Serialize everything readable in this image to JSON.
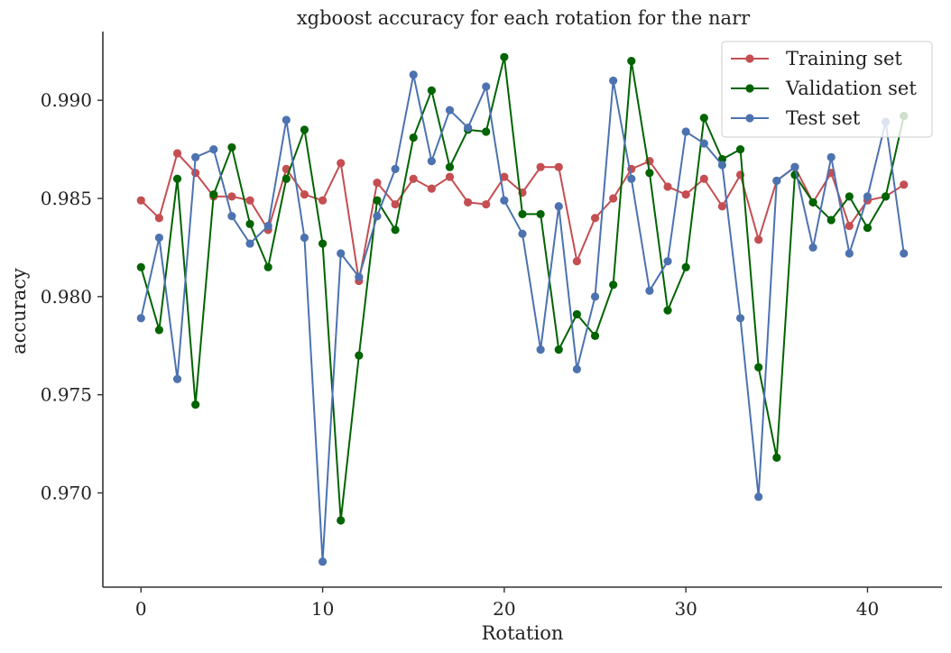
{
  "chart_data": {
    "type": "line",
    "title": "xgboost accuracy for each rotation for the narr",
    "xlabel": "Rotation",
    "ylabel": "accuracy",
    "xlim": [
      -2.1,
      44.1
    ],
    "ylim": [
      0.9652,
      0.9935
    ],
    "xticks": [
      0,
      10,
      20,
      30,
      40
    ],
    "xtick_labels": [
      "0",
      "10",
      "20",
      "30",
      "40"
    ],
    "yticks": [
      0.97,
      0.975,
      0.98,
      0.985,
      0.99
    ],
    "ytick_labels": [
      "0.970",
      "0.975",
      "0.980",
      "0.985",
      "0.990"
    ],
    "grid": false,
    "legend_position": "top-right",
    "x": [
      0,
      1,
      2,
      3,
      4,
      5,
      6,
      7,
      8,
      9,
      10,
      11,
      12,
      13,
      14,
      15,
      16,
      17,
      18,
      19,
      20,
      21,
      22,
      23,
      24,
      25,
      26,
      27,
      28,
      29,
      30,
      31,
      32,
      33,
      34,
      35,
      36,
      37,
      38,
      39,
      40,
      41,
      42
    ],
    "series": [
      {
        "name": "Training set",
        "color": "#c44e52",
        "values": [
          0.9849,
          0.984,
          0.9873,
          0.9863,
          0.9851,
          0.9851,
          0.9849,
          0.9834,
          0.9865,
          0.9852,
          0.9849,
          0.9868,
          0.9808,
          0.9858,
          0.9847,
          0.986,
          0.9855,
          0.9861,
          0.9848,
          0.9847,
          0.9861,
          0.9853,
          0.9866,
          0.9866,
          0.9818,
          0.984,
          0.985,
          0.9865,
          0.9869,
          0.9856,
          0.9852,
          0.986,
          0.9846,
          0.9862,
          0.9829,
          0.9859,
          0.9866,
          0.9848,
          0.9863,
          0.9836,
          0.9849,
          0.9851,
          0.9857
        ]
      },
      {
        "name": "Validation set",
        "color": "#006400",
        "values": [
          0.9815,
          0.9783,
          0.986,
          0.9745,
          0.9852,
          0.9876,
          0.9837,
          0.9815,
          0.986,
          0.9885,
          0.9827,
          0.9686,
          0.977,
          0.9849,
          0.9834,
          0.9881,
          0.9905,
          0.9866,
          0.9885,
          0.9884,
          0.9922,
          0.9842,
          0.9842,
          0.9773,
          0.9791,
          0.978,
          0.9806,
          0.992,
          0.9863,
          0.9793,
          0.9815,
          0.9891,
          0.987,
          0.9875,
          0.9764,
          0.9718,
          0.9862,
          0.9848,
          0.9839,
          0.9851,
          0.9835,
          0.9851,
          0.9892
        ]
      },
      {
        "name": "Test set",
        "color": "#4c72b0",
        "values": [
          0.9789,
          0.983,
          0.9758,
          0.9871,
          0.9875,
          0.9841,
          0.9827,
          0.9836,
          0.989,
          0.983,
          0.9665,
          0.9822,
          0.981,
          0.9841,
          0.9865,
          0.9913,
          0.9869,
          0.9895,
          0.9886,
          0.9907,
          0.9849,
          0.9832,
          0.9773,
          0.9846,
          0.9763,
          0.98,
          0.991,
          0.986,
          0.9803,
          0.9818,
          0.9884,
          0.9878,
          0.9867,
          0.9789,
          0.9698,
          0.9859,
          0.9866,
          0.9825,
          0.9871,
          0.9822,
          0.9851,
          0.9889,
          0.9822
        ]
      }
    ]
  }
}
